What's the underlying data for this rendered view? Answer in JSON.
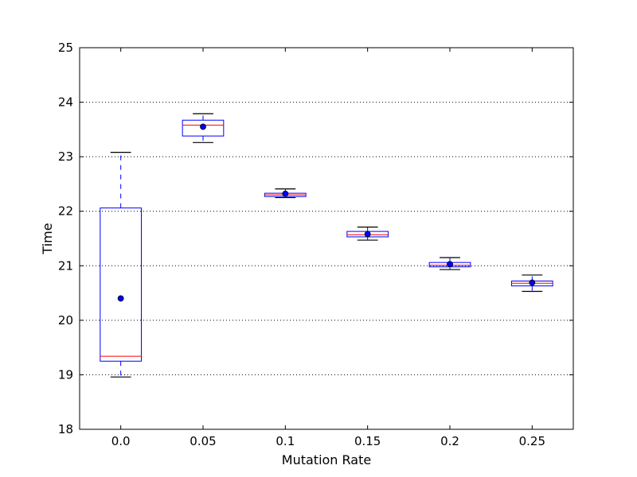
{
  "chart_data": {
    "type": "box",
    "title": "",
    "xlabel": "Mutation Rate",
    "ylabel": "Time",
    "ylim": [
      18,
      25
    ],
    "yticks": [
      18,
      19,
      20,
      21,
      22,
      23,
      24,
      25
    ],
    "ytick_labels": [
      "18",
      "19",
      "20",
      "21",
      "22",
      "23",
      "24",
      "25"
    ],
    "x_range": [
      -0.5,
      5.5
    ],
    "grid": "horizontal-dotted",
    "categories": [
      "0.0",
      "0.05",
      "0.1",
      "0.15",
      "0.2",
      "0.25"
    ],
    "boxes": [
      {
        "whisker_low": 18.96,
        "q1": 19.25,
        "median": 19.34,
        "q3": 22.06,
        "whisker_high": 23.08,
        "mean": 20.4
      },
      {
        "whisker_low": 23.26,
        "q1": 23.38,
        "median": 23.58,
        "q3": 23.67,
        "whisker_high": 23.79,
        "mean": 23.55
      },
      {
        "whisker_low": 22.25,
        "q1": 22.27,
        "median": 22.3,
        "q3": 22.33,
        "whisker_high": 22.41,
        "mean": 22.32
      },
      {
        "whisker_low": 21.47,
        "q1": 21.53,
        "median": 21.57,
        "q3": 21.63,
        "whisker_high": 21.71,
        "mean": 21.58
      },
      {
        "whisker_low": 20.93,
        "q1": 20.98,
        "median": 21.01,
        "q3": 21.06,
        "whisker_high": 21.15,
        "mean": 21.03
      },
      {
        "whisker_low": 20.53,
        "q1": 20.63,
        "median": 20.68,
        "q3": 20.72,
        "whisker_high": 20.83,
        "mean": 20.69
      }
    ],
    "colors": {
      "box": "#0000ff",
      "median": "#ff0000",
      "whisker": "#0000ff",
      "cap": "#000000",
      "mean": "#0000ff",
      "grid": "#000000",
      "axes": "#000000"
    }
  }
}
